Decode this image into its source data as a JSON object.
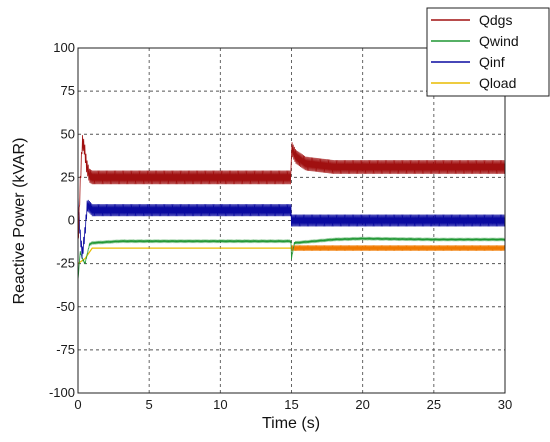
{
  "chart_data": {
    "type": "line",
    "title": "",
    "xlabel": "Time (s)",
    "ylabel": "Reactive Power (kVAR)",
    "xlim": [
      0,
      30
    ],
    "ylim": [
      -100,
      100
    ],
    "x_ticks": [
      "0",
      "5",
      "10",
      "15",
      "20",
      "25",
      "30"
    ],
    "y_ticks": [
      "100",
      "75",
      "50",
      "25",
      "0",
      "-25",
      "-50",
      "-75",
      "-100"
    ],
    "grid": true,
    "legend_position": "top-right",
    "series": [
      {
        "name": "Qdgs",
        "color": "#a01010",
        "ripple": 4,
        "points": [
          [
            0,
            -15
          ],
          [
            0.15,
            20
          ],
          [
            0.3,
            46
          ],
          [
            0.45,
            42
          ],
          [
            0.6,
            32
          ],
          [
            0.8,
            26
          ],
          [
            1,
            25
          ],
          [
            14.99,
            25
          ],
          [
            15,
            42
          ],
          [
            15.3,
            37
          ],
          [
            16,
            33
          ],
          [
            18,
            31
          ],
          [
            20,
            31
          ],
          [
            25,
            31
          ],
          [
            30,
            31
          ]
        ]
      },
      {
        "name": "Qwind",
        "color": "#1e9632",
        "ripple": 0.5,
        "points": [
          [
            0,
            -35
          ],
          [
            0.15,
            -18
          ],
          [
            0.3,
            -22
          ],
          [
            0.5,
            -25
          ],
          [
            0.8,
            -14
          ],
          [
            1,
            -13
          ],
          [
            3,
            -12
          ],
          [
            14.99,
            -12
          ],
          [
            15,
            -22
          ],
          [
            15.2,
            -13
          ],
          [
            18,
            -11
          ],
          [
            20,
            -10.5
          ],
          [
            25,
            -11
          ],
          [
            30,
            -11
          ]
        ]
      },
      {
        "name": "Qinf",
        "color": "#0a0aa0",
        "ripple": 3.5,
        "points": [
          [
            0,
            12
          ],
          [
            0.15,
            -8
          ],
          [
            0.3,
            -20
          ],
          [
            0.5,
            -6
          ],
          [
            0.65,
            9
          ],
          [
            0.9,
            7
          ],
          [
            1,
            6
          ],
          [
            14.99,
            6
          ],
          [
            15,
            0
          ],
          [
            30,
            0
          ]
        ]
      },
      {
        "name": "Qload",
        "color": "#e8bb00",
        "ripple": 0,
        "points": [
          [
            0,
            -25
          ],
          [
            0.5,
            -22
          ],
          [
            1,
            -16
          ],
          [
            14.99,
            -16
          ],
          [
            15,
            -16
          ],
          [
            30,
            -16
          ]
        ]
      },
      {
        "name": "",
        "color": "#f07a00",
        "ripple": 1.6,
        "points": [
          [
            15,
            -16
          ],
          [
            30,
            -16
          ]
        ]
      }
    ]
  }
}
